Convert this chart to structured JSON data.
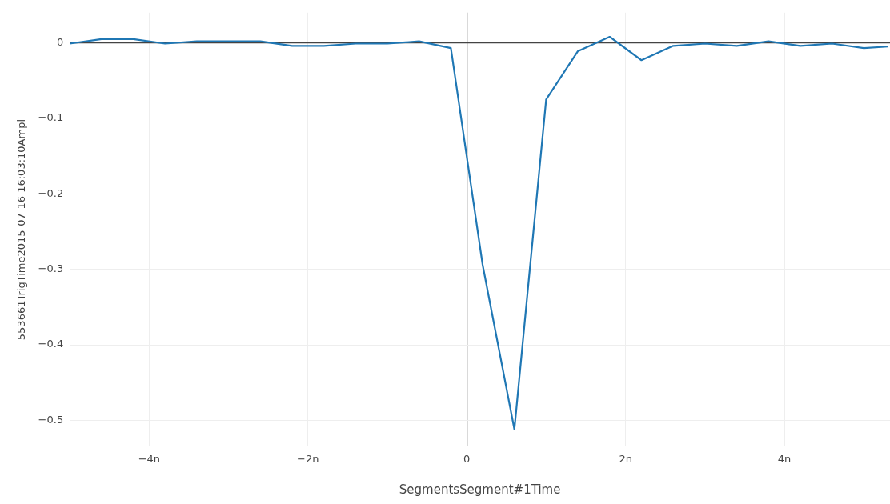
{
  "chart_data": {
    "type": "line",
    "xlabel": "SegmentsSegment#1Time",
    "ylabel": "553661TrigTime2015-07-16 16:03:10Ampl",
    "x": [
      -5.0,
      -4.6,
      -4.2,
      -3.8,
      -3.4,
      -3.0,
      -2.6,
      -2.2,
      -1.8,
      -1.4,
      -1.0,
      -0.6,
      -0.2,
      0.2,
      0.6,
      1.0,
      1.4,
      1.8,
      2.2,
      2.6,
      3.0,
      3.4,
      3.8,
      4.2,
      4.6,
      5.0,
      5.3
    ],
    "series": [
      {
        "color": "#1f77b4",
        "values": [
          -0.001,
          0.005,
          0.005,
          -0.001,
          0.002,
          0.002,
          0.002,
          -0.004,
          -0.004,
          -0.001,
          -0.001,
          0.002,
          -0.007,
          -0.294,
          -0.512,
          -0.075,
          -0.011,
          0.008,
          -0.023,
          -0.004,
          -0.001,
          -0.004,
          0.002,
          -0.004,
          -0.001,
          -0.007,
          -0.005
        ]
      }
    ],
    "xlim": [
      -5.0,
      5.33
    ],
    "ylim": [
      -0.535,
      0.04
    ],
    "xticks": [
      {
        "value": -4,
        "label": "−4n"
      },
      {
        "value": -2,
        "label": "−2n"
      },
      0,
      {
        "value": 2,
        "label": "2n"
      },
      {
        "value": 4,
        "label": "4n"
      }
    ],
    "yticks": [
      0,
      {
        "value": -0.1,
        "label": "−0.1"
      },
      {
        "value": -0.2,
        "label": "−0.2"
      },
      {
        "value": -0.3,
        "label": "−0.3"
      },
      {
        "value": -0.4,
        "label": "−0.4"
      },
      {
        "value": -0.5,
        "label": "−0.5"
      }
    ],
    "grid": true,
    "legend": false,
    "marker": "none",
    "line_style": "solid"
  }
}
